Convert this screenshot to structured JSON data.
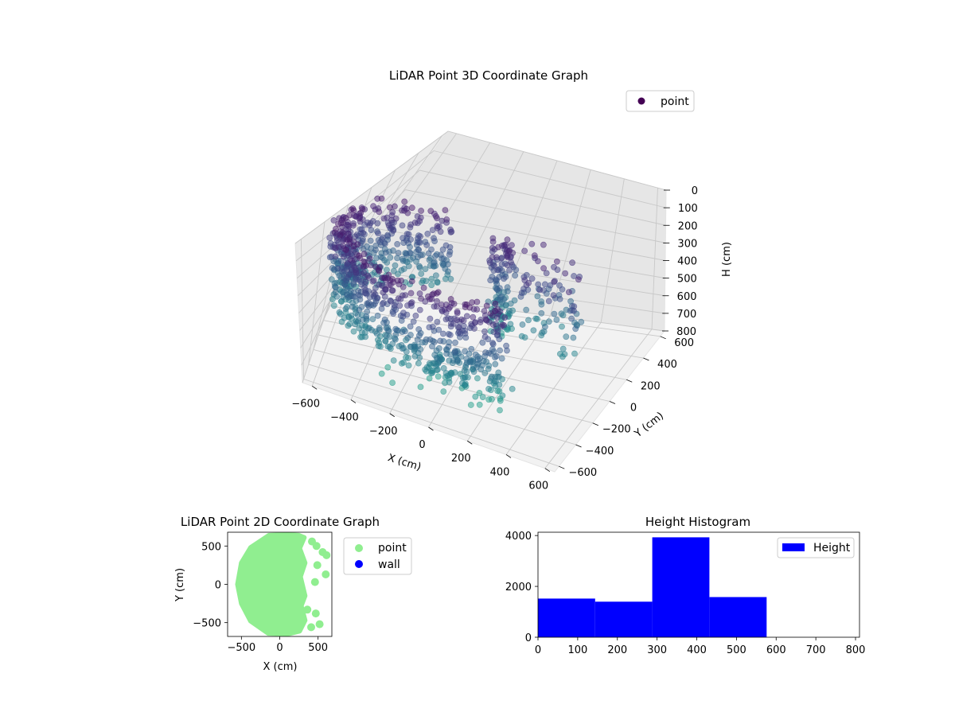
{
  "chart_data": [
    {
      "type": "scatter",
      "title": "LiDAR Point 3D Coordinate Graph",
      "xlabel": "X (cm)",
      "ylabel": "Y (cm)",
      "zlabel": "H (cm)",
      "x_ticks": [
        -600,
        -400,
        -200,
        0,
        200,
        400,
        600
      ],
      "y_ticks": [
        -600,
        -400,
        -200,
        0,
        200,
        400,
        600
      ],
      "z_ticks": [
        0,
        100,
        200,
        300,
        400,
        500,
        600,
        700,
        800
      ],
      "xlim": [
        -650,
        650
      ],
      "ylim": [
        -650,
        650
      ],
      "zlim": [
        800,
        0
      ],
      "z_inverted": true,
      "colormap": "viridis",
      "grid": true,
      "legend": {
        "entries": [
          {
            "label": "point",
            "color": "#440154"
          }
        ],
        "placement": "top-right"
      }
    },
    {
      "type": "scatter",
      "title": "LiDAR Point 2D Coordinate Graph",
      "xlabel": "X (cm)",
      "ylabel": "Y (cm)",
      "x_ticks": [
        -500,
        0,
        500
      ],
      "y_ticks": [
        -500,
        0,
        500
      ],
      "xlim": [
        -680,
        680
      ],
      "ylim": [
        -680,
        680
      ],
      "series": [
        {
          "name": "point",
          "color": "#90ee90"
        },
        {
          "name": "wall",
          "color": "#0000ff"
        }
      ],
      "legend": {
        "placement": "outside-right"
      }
    },
    {
      "type": "bar",
      "title": "Height Histogram",
      "bin_edges": [
        0,
        144,
        288,
        432,
        576,
        720
      ],
      "values": [
        1520,
        1400,
        3930,
        1580,
        0
      ],
      "series": [
        {
          "name": "Height",
          "color": "#0000ff"
        }
      ],
      "x_ticks": [
        0,
        100,
        200,
        300,
        400,
        500,
        600,
        700,
        800
      ],
      "y_ticks": [
        0,
        2000,
        4000
      ],
      "xlim": [
        0,
        810
      ],
      "ylim": [
        0,
        4130
      ],
      "legend": {
        "placement": "top-right"
      }
    }
  ]
}
